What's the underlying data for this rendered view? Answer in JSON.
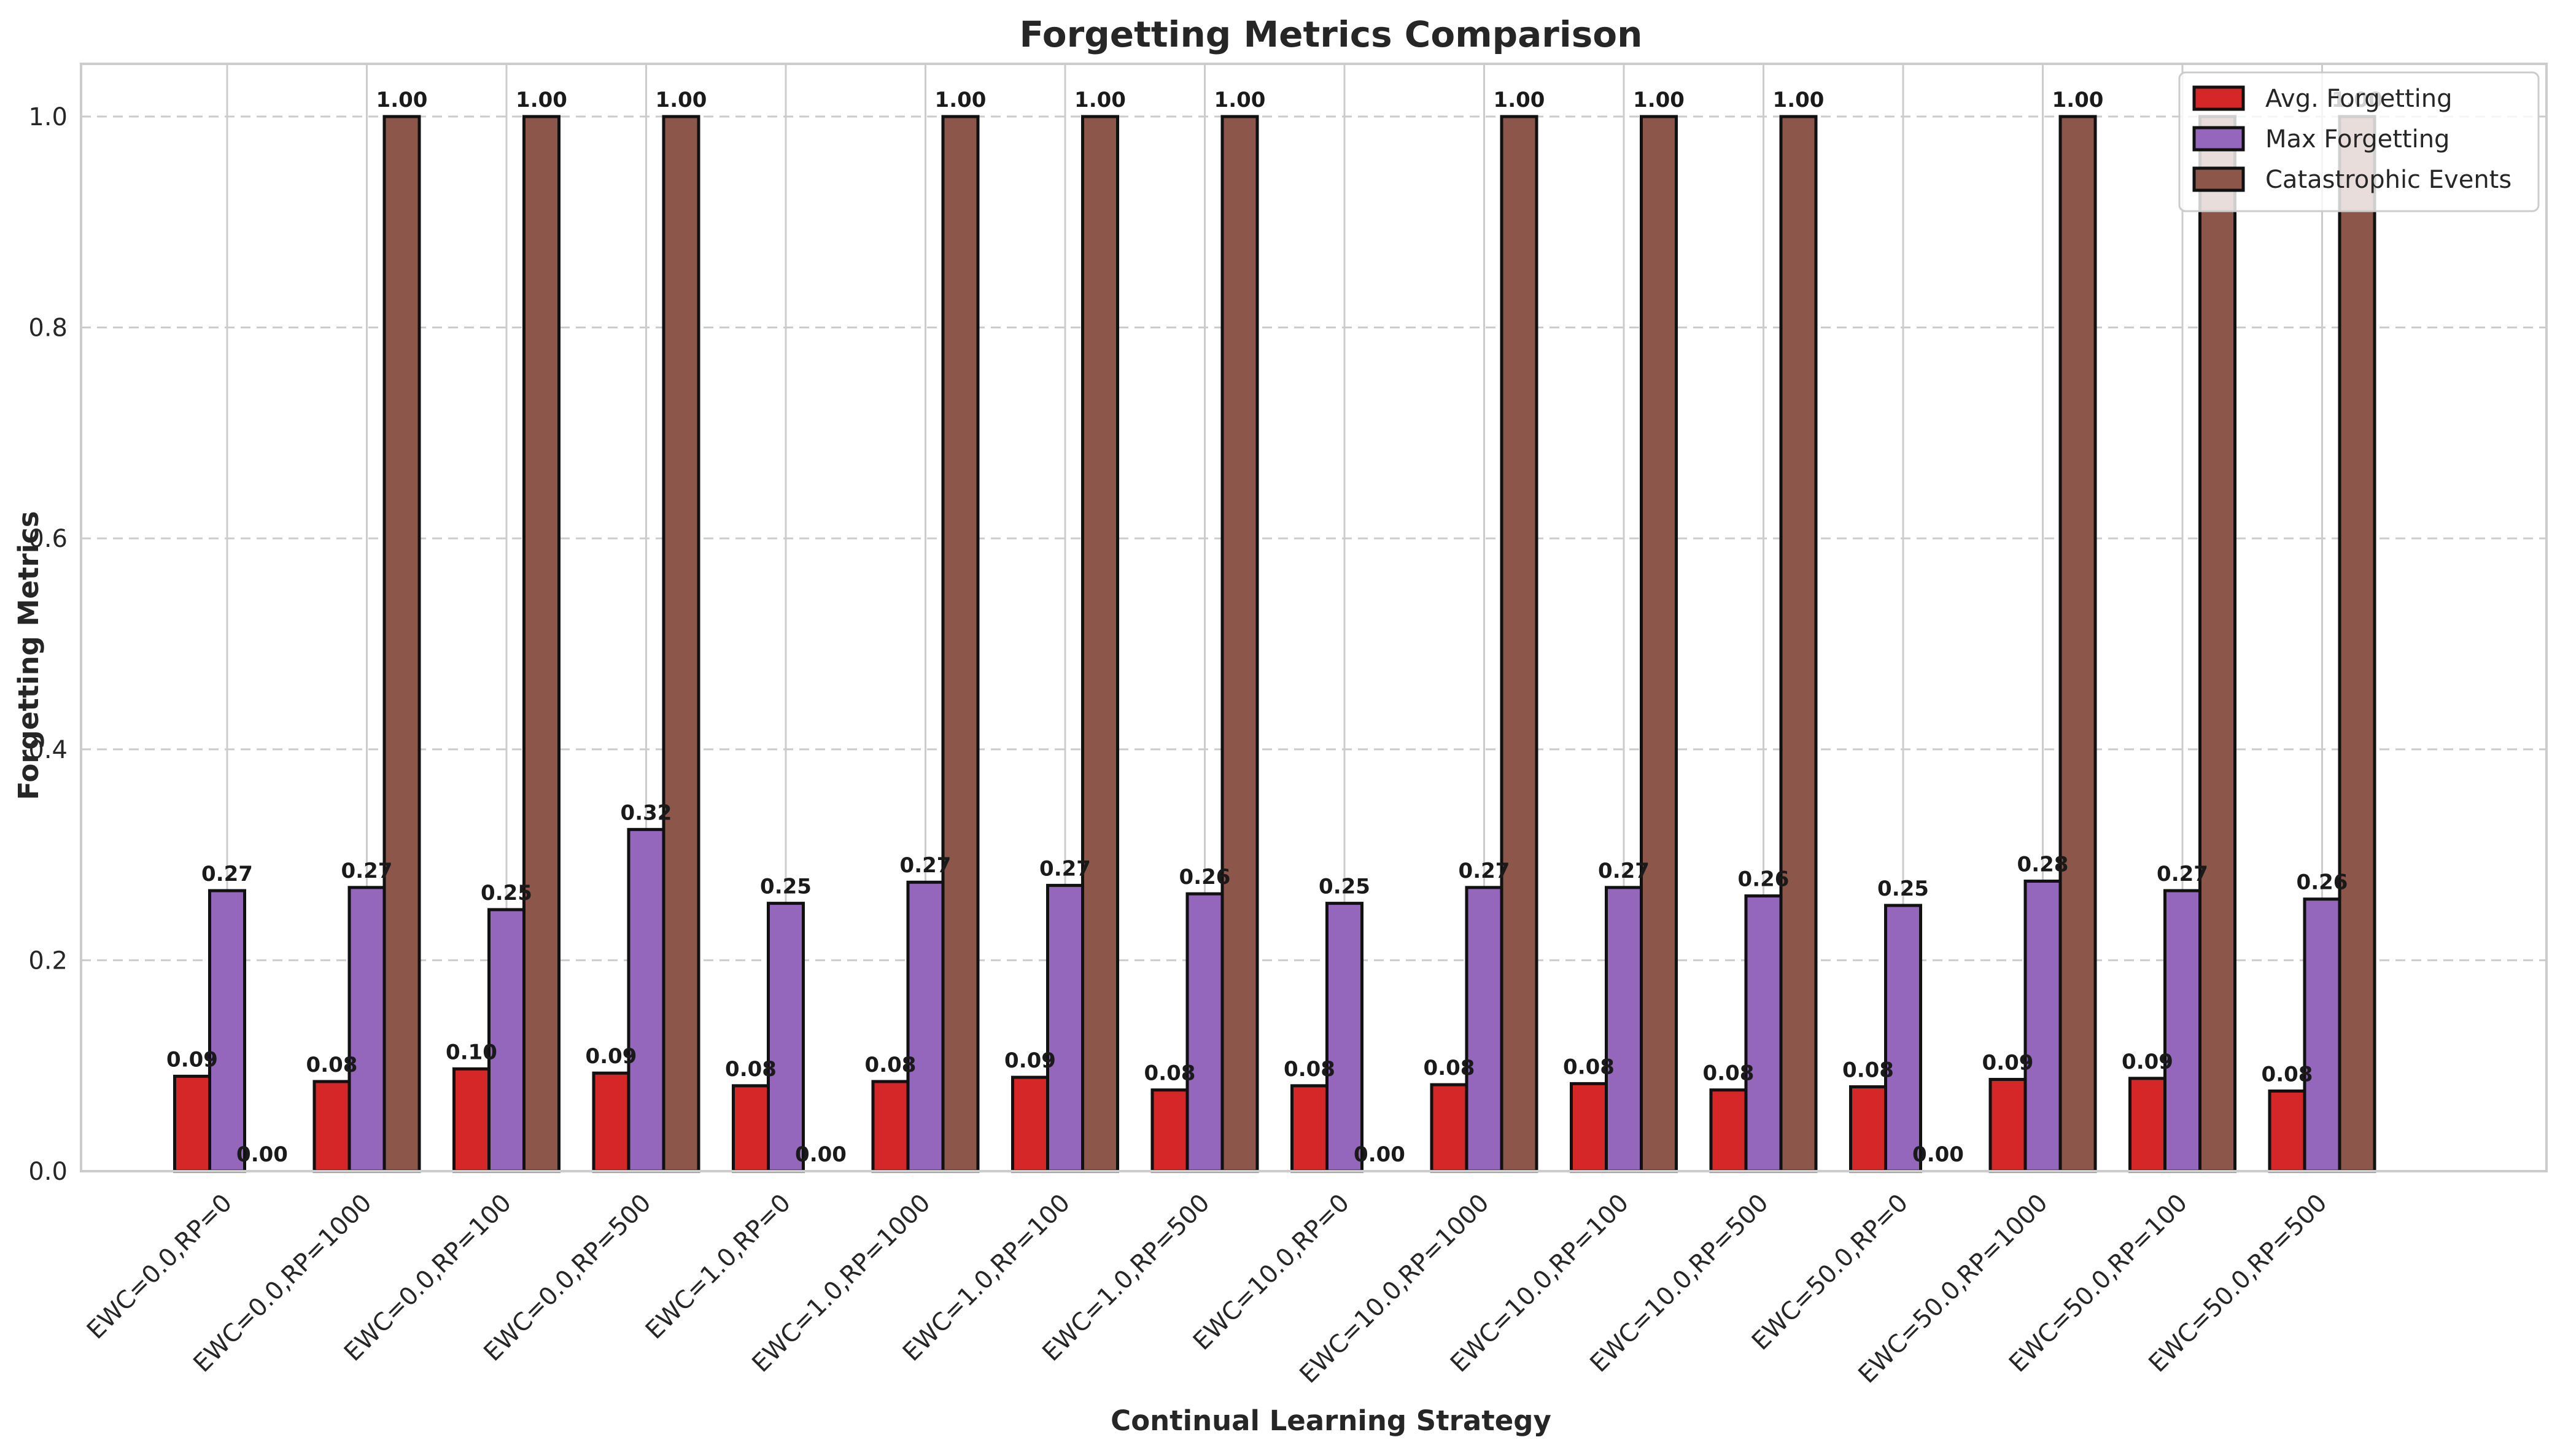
{
  "chart_data": {
    "type": "bar",
    "title": "Forgetting Metrics Comparison",
    "xlabel": "Continual Learning Strategy",
    "ylabel": "Forgetting Metrics",
    "ylim": [
      0,
      1.05
    ],
    "yticks": [
      "0.0",
      "0.2",
      "0.4",
      "0.6",
      "0.8",
      "1.0"
    ],
    "grid": "y-dashed",
    "legend_position": "top-right",
    "categories": [
      "EWC=0.0,RP=0",
      "EWC=0.0,RP=1000",
      "EWC=0.0,RP=100",
      "EWC=0.0,RP=500",
      "EWC=1.0,RP=0",
      "EWC=1.0,RP=1000",
      "EWC=1.0,RP=100",
      "EWC=1.0,RP=500",
      "EWC=10.0,RP=0",
      "EWC=10.0,RP=1000",
      "EWC=10.0,RP=100",
      "EWC=10.0,RP=500",
      "EWC=50.0,RP=0",
      "EWC=50.0,RP=1000",
      "EWC=50.0,RP=100",
      "EWC=50.0,RP=500"
    ],
    "series": [
      {
        "name": "Avg. Forgetting",
        "color": "#d62728",
        "values": [
          0.09,
          0.085,
          0.097,
          0.093,
          0.081,
          0.085,
          0.089,
          0.077,
          0.081,
          0.082,
          0.083,
          0.077,
          0.08,
          0.087,
          0.088,
          0.076
        ],
        "labels": [
          "0.09",
          "0.08",
          "0.10",
          "0.09",
          "0.08",
          "0.08",
          "0.09",
          "0.08",
          "0.08",
          "0.08",
          "0.08",
          "0.08",
          "0.08",
          "0.09",
          "0.09",
          "0.08"
        ]
      },
      {
        "name": "Max Forgetting",
        "color": "#9467bd",
        "values": [
          0.266,
          0.269,
          0.248,
          0.324,
          0.254,
          0.274,
          0.271,
          0.263,
          0.254,
          0.269,
          0.269,
          0.261,
          0.252,
          0.275,
          0.266,
          0.258
        ],
        "labels": [
          "0.27",
          "0.27",
          "0.25",
          "0.32",
          "0.25",
          "0.27",
          "0.27",
          "0.26",
          "0.25",
          "0.27",
          "0.27",
          "0.26",
          "0.25",
          "0.28",
          "0.27",
          "0.26"
        ]
      },
      {
        "name": "Catastrophic Events",
        "color": "#8c564b",
        "values": [
          0,
          1,
          1,
          1,
          0,
          1,
          1,
          1,
          0,
          1,
          1,
          1,
          0,
          1,
          1,
          1
        ],
        "labels": [
          "0.00",
          "1.00",
          "1.00",
          "1.00",
          "0.00",
          "1.00",
          "1.00",
          "1.00",
          "0.00",
          "1.00",
          "1.00",
          "1.00",
          "0.00",
          "1.00",
          "1.00",
          "1.00"
        ]
      }
    ]
  }
}
